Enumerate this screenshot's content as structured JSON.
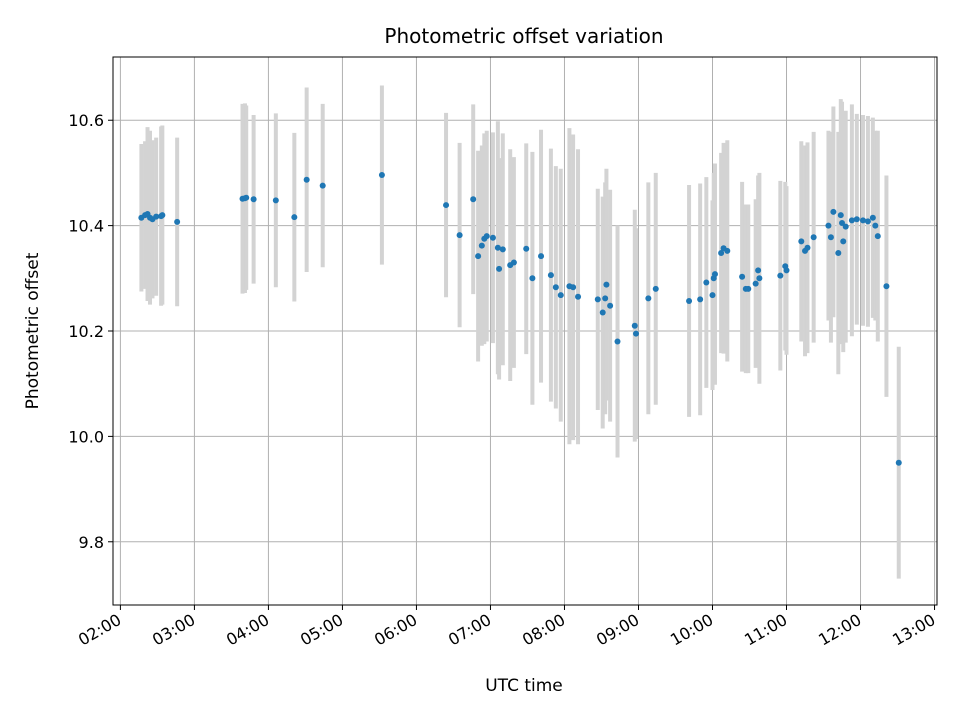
{
  "chart_data": {
    "type": "scatter",
    "title": "Photometric offset variation",
    "xlabel": "UTC time",
    "ylabel": "Photometric offset",
    "xlim": [
      "01:54",
      "13:02"
    ],
    "ylim": [
      9.68,
      10.72
    ],
    "x_ticks": [
      "02:00",
      "03:00",
      "04:00",
      "05:00",
      "06:00",
      "07:00",
      "08:00",
      "09:00",
      "10:00",
      "11:00",
      "12:00",
      "13:00"
    ],
    "y_ticks": [
      9.8,
      10.0,
      10.2,
      10.4,
      10.6
    ],
    "grid": true,
    "colors": {
      "points": "#1f77b4",
      "errorbars": "#d3d3d3",
      "grid": "#b0b0b0"
    },
    "series": [
      {
        "x": [
          "02:17",
          "02:20",
          "02:22",
          "02:24",
          "02:26",
          "02:29",
          "02:33",
          "02:34",
          "02:46",
          "03:39",
          "03:41",
          "03:42",
          "03:48",
          "04:06",
          "04:21",
          "04:31",
          "04:44",
          "05:32",
          "06:24",
          "06:35",
          "06:46",
          "06:50",
          "06:53",
          "06:55",
          "06:57",
          "07:02",
          "07:06",
          "07:07",
          "07:10",
          "07:16",
          "07:19",
          "07:29",
          "07:34",
          "07:41",
          "07:49",
          "07:53",
          "07:57",
          "08:04",
          "08:07",
          "08:11",
          "08:27",
          "08:31",
          "08:33",
          "08:34",
          "08:37",
          "08:43",
          "08:57",
          "08:58",
          "09:08",
          "09:14",
          "09:41",
          "09:50",
          "09:55",
          "10:00",
          "10:01",
          "10:02",
          "10:07",
          "10:09",
          "10:12",
          "10:24",
          "10:27",
          "10:29",
          "10:35",
          "10:37",
          "10:38",
          "10:55",
          "10:59",
          "11:00",
          "11:12",
          "11:15",
          "11:17",
          "11:22",
          "11:34",
          "11:36",
          "11:38",
          "11:42",
          "11:44",
          "11:45",
          "11:46",
          "11:48",
          "11:53",
          "11:57",
          "12:02",
          "12:06",
          "12:10",
          "12:12",
          "12:14",
          "12:21",
          "12:31"
        ],
        "y": [
          10.415,
          10.42,
          10.422,
          10.415,
          10.412,
          10.417,
          10.418,
          10.42,
          10.407,
          10.451,
          10.452,
          10.453,
          10.45,
          10.448,
          10.416,
          10.487,
          10.476,
          10.496,
          10.439,
          10.382,
          10.45,
          10.342,
          10.362,
          10.375,
          10.38,
          10.377,
          10.358,
          10.318,
          10.355,
          10.325,
          10.33,
          10.356,
          10.3,
          10.342,
          10.306,
          10.283,
          10.268,
          10.285,
          10.283,
          10.265,
          10.26,
          10.235,
          10.262,
          10.288,
          10.248,
          10.18,
          10.21,
          10.195,
          10.262,
          10.28,
          10.257,
          10.26,
          10.292,
          10.268,
          10.3,
          10.308,
          10.348,
          10.357,
          10.352,
          10.303,
          10.28,
          10.28,
          10.29,
          10.315,
          10.3,
          10.305,
          10.323,
          10.315,
          10.37,
          10.352,
          10.358,
          10.378,
          10.4,
          10.378,
          10.426,
          10.348,
          10.42,
          10.405,
          10.37,
          10.398,
          10.41,
          10.412,
          10.41,
          10.408,
          10.415,
          10.4,
          10.38,
          10.285,
          9.95
        ],
        "err": [
          0.14,
          0.14,
          0.165,
          0.165,
          0.15,
          0.15,
          0.17,
          0.17,
          0.16,
          0.18,
          0.18,
          0.175,
          0.16,
          0.165,
          0.16,
          0.175,
          0.155,
          0.17,
          0.175,
          0.175,
          0.18,
          0.2,
          0.19,
          0.2,
          0.2,
          0.2,
          0.24,
          0.21,
          0.22,
          0.22,
          0.2,
          0.2,
          0.24,
          0.24,
          0.24,
          0.23,
          0.24,
          0.3,
          0.29,
          0.28,
          0.21,
          0.22,
          0.22,
          0.22,
          0.22,
          0.22,
          0.22,
          0.2,
          0.22,
          0.22,
          0.22,
          0.22,
          0.2,
          0.18,
          0.2,
          0.21,
          0.19,
          0.2,
          0.21,
          0.18,
          0.16,
          0.16,
          0.16,
          0.18,
          0.2,
          0.18,
          0.16,
          0.16,
          0.19,
          0.2,
          0.2,
          0.2,
          0.18,
          0.2,
          0.2,
          0.23,
          0.22,
          0.23,
          0.21,
          0.22,
          0.22,
          0.2,
          0.2,
          0.2,
          0.19,
          0.18,
          0.2,
          0.21,
          0.22
        ]
      }
    ]
  }
}
